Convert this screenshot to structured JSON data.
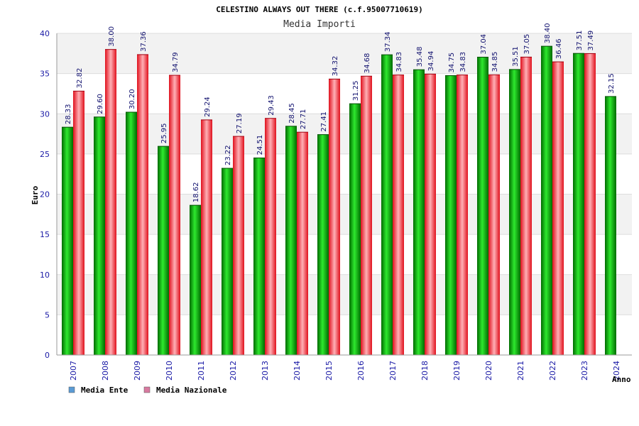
{
  "chart_data": {
    "type": "bar",
    "title": "CELESTINO ALWAYS OUT THERE (c.f.95007710619)",
    "subtitle": "Media Importi",
    "ylabel": "Euro",
    "xlabel": "Anno",
    "ylim": [
      0,
      40
    ],
    "yticks": [
      "0",
      "5",
      "10",
      "15",
      "20",
      "25",
      "30",
      "35",
      "40"
    ],
    "grid": true,
    "legend_position": "bottom-left",
    "categories": [
      "2007",
      "2008",
      "2009",
      "2010",
      "2011",
      "2012",
      "2013",
      "2014",
      "2015",
      "2016",
      "2017",
      "2018",
      "2019",
      "2020",
      "2021",
      "2022",
      "2023",
      "2024"
    ],
    "series": [
      {
        "name": "Media Ente",
        "color": "#00a000",
        "legend_color": "#5b9bd5",
        "values": [
          28.33,
          29.6,
          30.2,
          25.95,
          18.62,
          23.22,
          24.51,
          28.45,
          27.41,
          31.25,
          37.34,
          35.48,
          34.75,
          37.04,
          35.51,
          38.4,
          37.51,
          32.15
        ],
        "labels": [
          "28.33",
          "29.60",
          "30.20",
          "25.95",
          "18.62",
          "23.22",
          "24.51",
          "28.45",
          "27.41",
          "31.25",
          "37.34",
          "35.48",
          "34.75",
          "37.04",
          "35.51",
          "38.40",
          "37.51",
          "32.15"
        ]
      },
      {
        "name": "Media Nazionale",
        "color": "#e8202a",
        "legend_color": "#d87aa0",
        "values": [
          32.82,
          38.0,
          37.36,
          34.79,
          29.24,
          27.19,
          29.43,
          27.71,
          34.32,
          34.68,
          34.83,
          34.94,
          34.83,
          34.85,
          37.05,
          36.46,
          37.49,
          null
        ],
        "labels": [
          "32.82",
          "38.00",
          "37.36",
          "34.79",
          "29.24",
          "27.19",
          "29.43",
          "27.71",
          "34.32",
          "34.68",
          "34.83",
          "34.94",
          "34.83",
          "34.85",
          "37.05",
          "36.46",
          "37.49",
          ""
        ]
      }
    ]
  }
}
